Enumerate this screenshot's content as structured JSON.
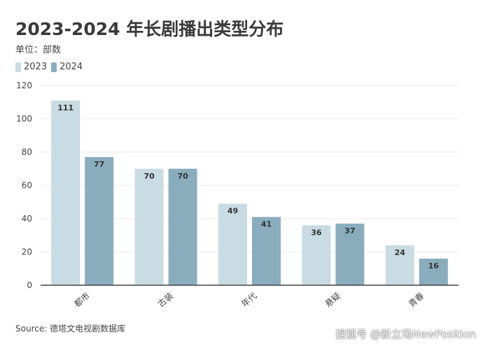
{
  "title": "2023-2024 年长剧播出类型分布",
  "unit_label": "单位：部数",
  "source": "Source: 德塔文电视剧数据库",
  "watermark": "搜狐号 @新立场NewPosition",
  "colors": {
    "2023": "#c9dbe3",
    "2024": "#8aadbe",
    "grid": "#e9e9e9",
    "axis": "#444444"
  },
  "chart_data": {
    "type": "bar",
    "categories": [
      "都市",
      "古装",
      "年代",
      "悬疑",
      "青春"
    ],
    "series": [
      {
        "name": "2023",
        "values": [
          111,
          70,
          49,
          36,
          24
        ]
      },
      {
        "name": "2024",
        "values": [
          77,
          70,
          41,
          37,
          16
        ]
      }
    ],
    "ylim": [
      0,
      120
    ],
    "yticks": [
      0,
      20,
      40,
      60,
      80,
      100,
      120
    ],
    "grid": true,
    "legend": "top-left",
    "data_labels": true,
    "xlabel": "",
    "ylabel": ""
  }
}
